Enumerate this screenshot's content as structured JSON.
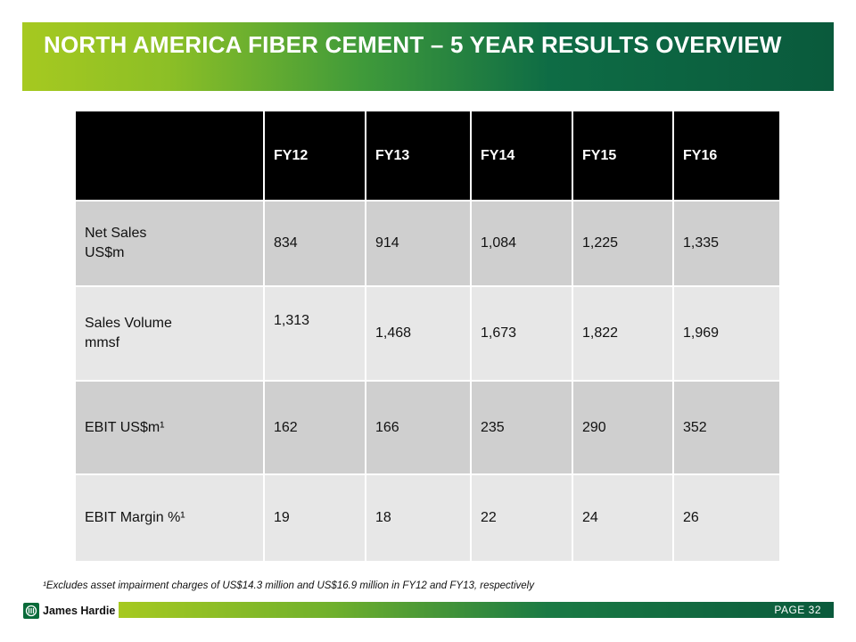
{
  "title": "NORTH AMERICA FIBER CEMENT – 5 YEAR RESULTS OVERVIEW",
  "table": {
    "corner": "",
    "headers": [
      "FY12",
      "FY13",
      "FY14",
      "FY15",
      "FY16"
    ],
    "rows": [
      {
        "label_line1": "Net Sales",
        "label_line2": "US$m",
        "values": [
          "834",
          "914",
          "1,084",
          "1,225",
          "1,335"
        ]
      },
      {
        "label_line1": "Sales Volume",
        "label_line2": "mmsf",
        "values": [
          "1,313",
          "1,468",
          "1,673",
          "1,822",
          "1,969"
        ]
      },
      {
        "label_line1": "EBIT US$m¹",
        "label_line2": "",
        "values": [
          "162",
          "166",
          "235",
          "290",
          "352"
        ]
      },
      {
        "label_line1": "EBIT Margin %¹",
        "label_line2": "",
        "values": [
          "19",
          "18",
          "22",
          "24",
          "26"
        ]
      }
    ]
  },
  "footnote": "¹Excludes asset impairment charges of US$14.3 million  and US$16.9 million  in FY12 and FY13, respectively",
  "footer": {
    "logo_icon": "james-hardie-logo-icon",
    "brand": "James Hardie",
    "page_label": "PAGE  32"
  },
  "colors": {
    "accent_green": "#0a6b3a",
    "lime": "#a6c920",
    "header_black": "#000000",
    "row_dark": "#cfcfcf",
    "row_light": "#e7e7e7"
  }
}
